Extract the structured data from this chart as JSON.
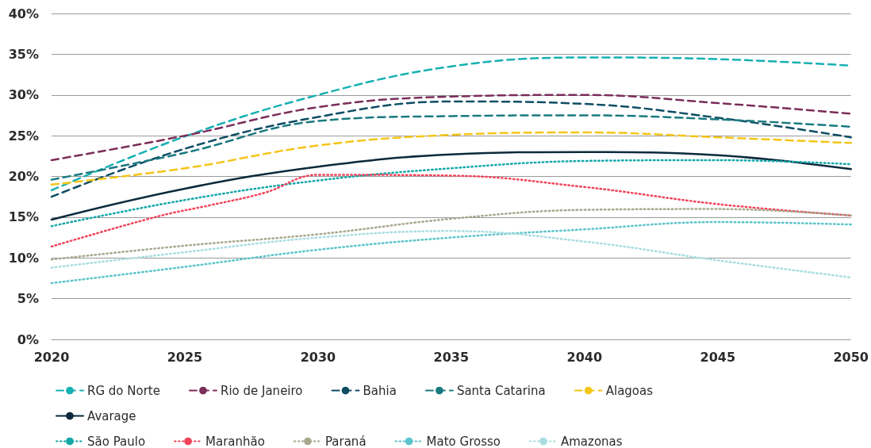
{
  "chart_data": {
    "type": "line",
    "x": [
      2020,
      2025,
      2030,
      2035,
      2040,
      2045,
      2050
    ],
    "xlim": [
      2020,
      2050
    ],
    "xticks": [
      2020,
      2025,
      2030,
      2035,
      2040,
      2045,
      2050
    ],
    "ylim": [
      0,
      40
    ],
    "yticks": [
      {
        "value": 0,
        "label": "0%"
      },
      {
        "value": 5,
        "label": "5%"
      },
      {
        "value": 10,
        "label": "10%"
      },
      {
        "value": 15,
        "label": "15%"
      },
      {
        "value": 20,
        "label": "20%"
      },
      {
        "value": 25,
        "label": "25%"
      },
      {
        "value": 30,
        "label": "30%"
      },
      {
        "value": 35,
        "label": "35%"
      },
      {
        "value": 40,
        "label": "40%"
      }
    ],
    "grid": "y",
    "legend": "bottom",
    "marker": "none",
    "series": [
      {
        "name": "RG do Norte",
        "color": "#17b0b3",
        "line_style": "dashed",
        "values": [
          18.3,
          24.9,
          30.0,
          33.5,
          34.6,
          34.4,
          33.6
        ]
      },
      {
        "name": "Rio de Janeiro",
        "color": "#7b2d5a",
        "line_style": "dashed",
        "values": [
          22.0,
          25.0,
          28.5,
          29.8,
          30.0,
          29.0,
          27.7
        ]
      },
      {
        "name": "Bahia",
        "color": "#0e4d64",
        "line_style": "dashed",
        "values": [
          17.5,
          23.4,
          27.3,
          29.2,
          28.9,
          27.2,
          24.8
        ]
      },
      {
        "name": "Santa Catarina",
        "color": "#1a7a80",
        "line_style": "dashed",
        "values": [
          19.6,
          22.9,
          26.8,
          27.4,
          27.5,
          27.0,
          26.1
        ]
      },
      {
        "name": "Alagoas",
        "color": "#f5c518",
        "line_style": "dashed",
        "values": [
          19.0,
          21.0,
          23.8,
          25.1,
          25.4,
          24.8,
          24.1
        ]
      },
      {
        "name": "Avarage",
        "color": "#0b2a3c",
        "line_style": "solid",
        "values": [
          14.7,
          18.5,
          21.2,
          22.7,
          23.0,
          22.6,
          20.9
        ]
      },
      {
        "name": "São Paulo",
        "color": "#13a7a8",
        "line_style": "dotted",
        "values": [
          13.9,
          17.1,
          19.5,
          21.0,
          21.9,
          22.0,
          21.5
        ]
      },
      {
        "name": "Maranhão",
        "color": "#f2435a",
        "line_style": "dotted",
        "x": [
          2020,
          2024,
          2026,
          2028,
          2030,
          2035,
          2040,
          2045,
          2050
        ],
        "values": [
          11.4,
          15.1,
          16.5,
          18.0,
          20.2,
          20.1,
          18.7,
          16.6,
          15.2
        ]
      },
      {
        "name": "Paraná",
        "color": "#a8a88e",
        "line_style": "dotted",
        "values": [
          9.8,
          11.5,
          12.9,
          14.8,
          15.9,
          16.0,
          15.2
        ]
      },
      {
        "name": "Mato Grosso",
        "color": "#5bc4cc",
        "line_style": "dotted",
        "values": [
          6.9,
          8.9,
          11.0,
          12.5,
          13.5,
          14.4,
          14.1
        ]
      },
      {
        "name": "Amazonas",
        "color": "#a9dde0",
        "line_style": "dotted",
        "values": [
          8.8,
          10.7,
          12.5,
          13.3,
          12.0,
          9.7,
          7.6
        ]
      }
    ]
  }
}
